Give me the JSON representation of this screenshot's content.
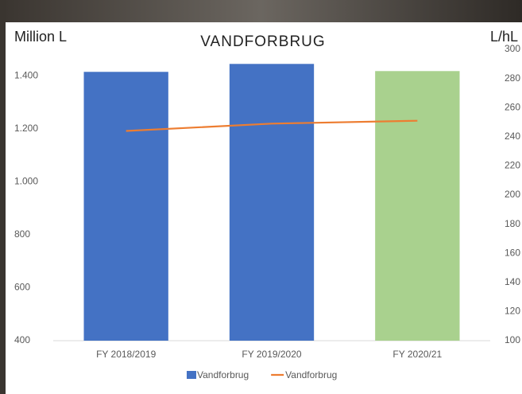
{
  "chart_data": {
    "type": "bar",
    "title": "VANDFORBRUG",
    "y_label": "Million L",
    "y2_label": "L/hL",
    "categories": [
      "FY 2018/2019",
      "FY 2019/2020",
      "FY 2020/21"
    ],
    "series": [
      {
        "name": "Vandforbrug",
        "type": "bar",
        "color": "#4472c4",
        "point_colors": [
          "#4472c4",
          "#4472c4",
          "#a9d18e"
        ],
        "values": [
          1415,
          1445,
          1418
        ]
      },
      {
        "name": "Vandforbrug",
        "type": "line",
        "axis": "y2",
        "color": "#ed7d31",
        "values": [
          244,
          249,
          251
        ]
      }
    ],
    "ylim": [
      400,
      1500
    ],
    "yticks": [
      {
        "value": 400,
        "label": "400"
      },
      {
        "value": 600,
        "label": "600"
      },
      {
        "value": 800,
        "label": "800"
      },
      {
        "value": 1000,
        "label": "1.000"
      },
      {
        "value": 1200,
        "label": "1.200"
      },
      {
        "value": 1400,
        "label": "1.400"
      }
    ],
    "y2lim": [
      100,
      300
    ],
    "y2ticks": [
      100,
      120,
      140,
      160,
      180,
      200,
      220,
      240,
      260,
      280,
      300
    ],
    "grid": false,
    "legend": "bottom"
  }
}
